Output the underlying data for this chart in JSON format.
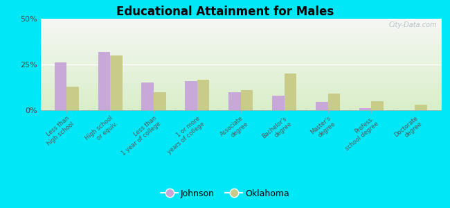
{
  "title": "Educational Attainment for Males",
  "categories": [
    "Less than\nhigh school",
    "High school\nor equiv.",
    "Less than\n1 year of college",
    "1 or more\nyears of college",
    "Associate\ndegree",
    "Bachelor's\ndegree",
    "Master's\ndegree",
    "Profess.\nschool degree",
    "Doctorate\ndegree"
  ],
  "johnson_values": [
    26.0,
    32.0,
    15.0,
    16.0,
    10.0,
    8.0,
    4.5,
    1.0,
    0.0
  ],
  "oklahoma_values": [
    13.0,
    30.0,
    10.0,
    16.5,
    11.0,
    20.0,
    9.0,
    5.0,
    3.0
  ],
  "johnson_color": "#c8a8d8",
  "oklahoma_color": "#c8cc88",
  "ylim": [
    0,
    50
  ],
  "yticks": [
    0,
    25,
    50
  ],
  "ytick_labels": [
    "0%",
    "25%",
    "50%"
  ],
  "plot_bg_top": "#f0f8e8",
  "plot_bg_bottom": "#e0f0e0",
  "outer_background": "#00e8f8",
  "bar_width": 0.28,
  "legend_johnson": "Johnson",
  "legend_oklahoma": "Oklahoma",
  "watermark": "City-Data.com"
}
